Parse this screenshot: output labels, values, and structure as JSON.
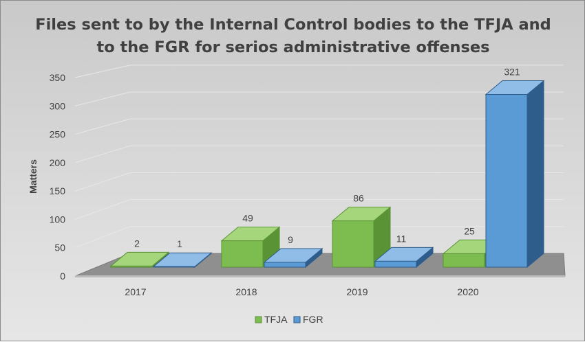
{
  "chart_data": {
    "type": "bar",
    "title_lines": [
      "Files sent to by the Internal Control bodies to the TFJA and",
      "to the FGR for serios administrative offenses"
    ],
    "ylabel": "Matters",
    "xlabel": "",
    "ylim": [
      0,
      350
    ],
    "ytick_values": [
      0,
      50,
      100,
      150,
      200,
      250,
      300,
      350
    ],
    "categories": [
      "2017",
      "2018",
      "2019",
      "2020"
    ],
    "series": [
      {
        "name": "TFJA",
        "values": [
          2,
          49,
          86,
          25
        ],
        "color": "#7dbc4e",
        "dark": "#5a9236",
        "light": "#a6d67c"
      },
      {
        "name": "FGR",
        "values": [
          1,
          9,
          11,
          321
        ],
        "color": "#5b9bd5",
        "dark": "#2e5d8c",
        "light": "#8fbde8"
      }
    ],
    "grid": true,
    "legend_position": "bottom",
    "style": "3d-clustered-column"
  }
}
